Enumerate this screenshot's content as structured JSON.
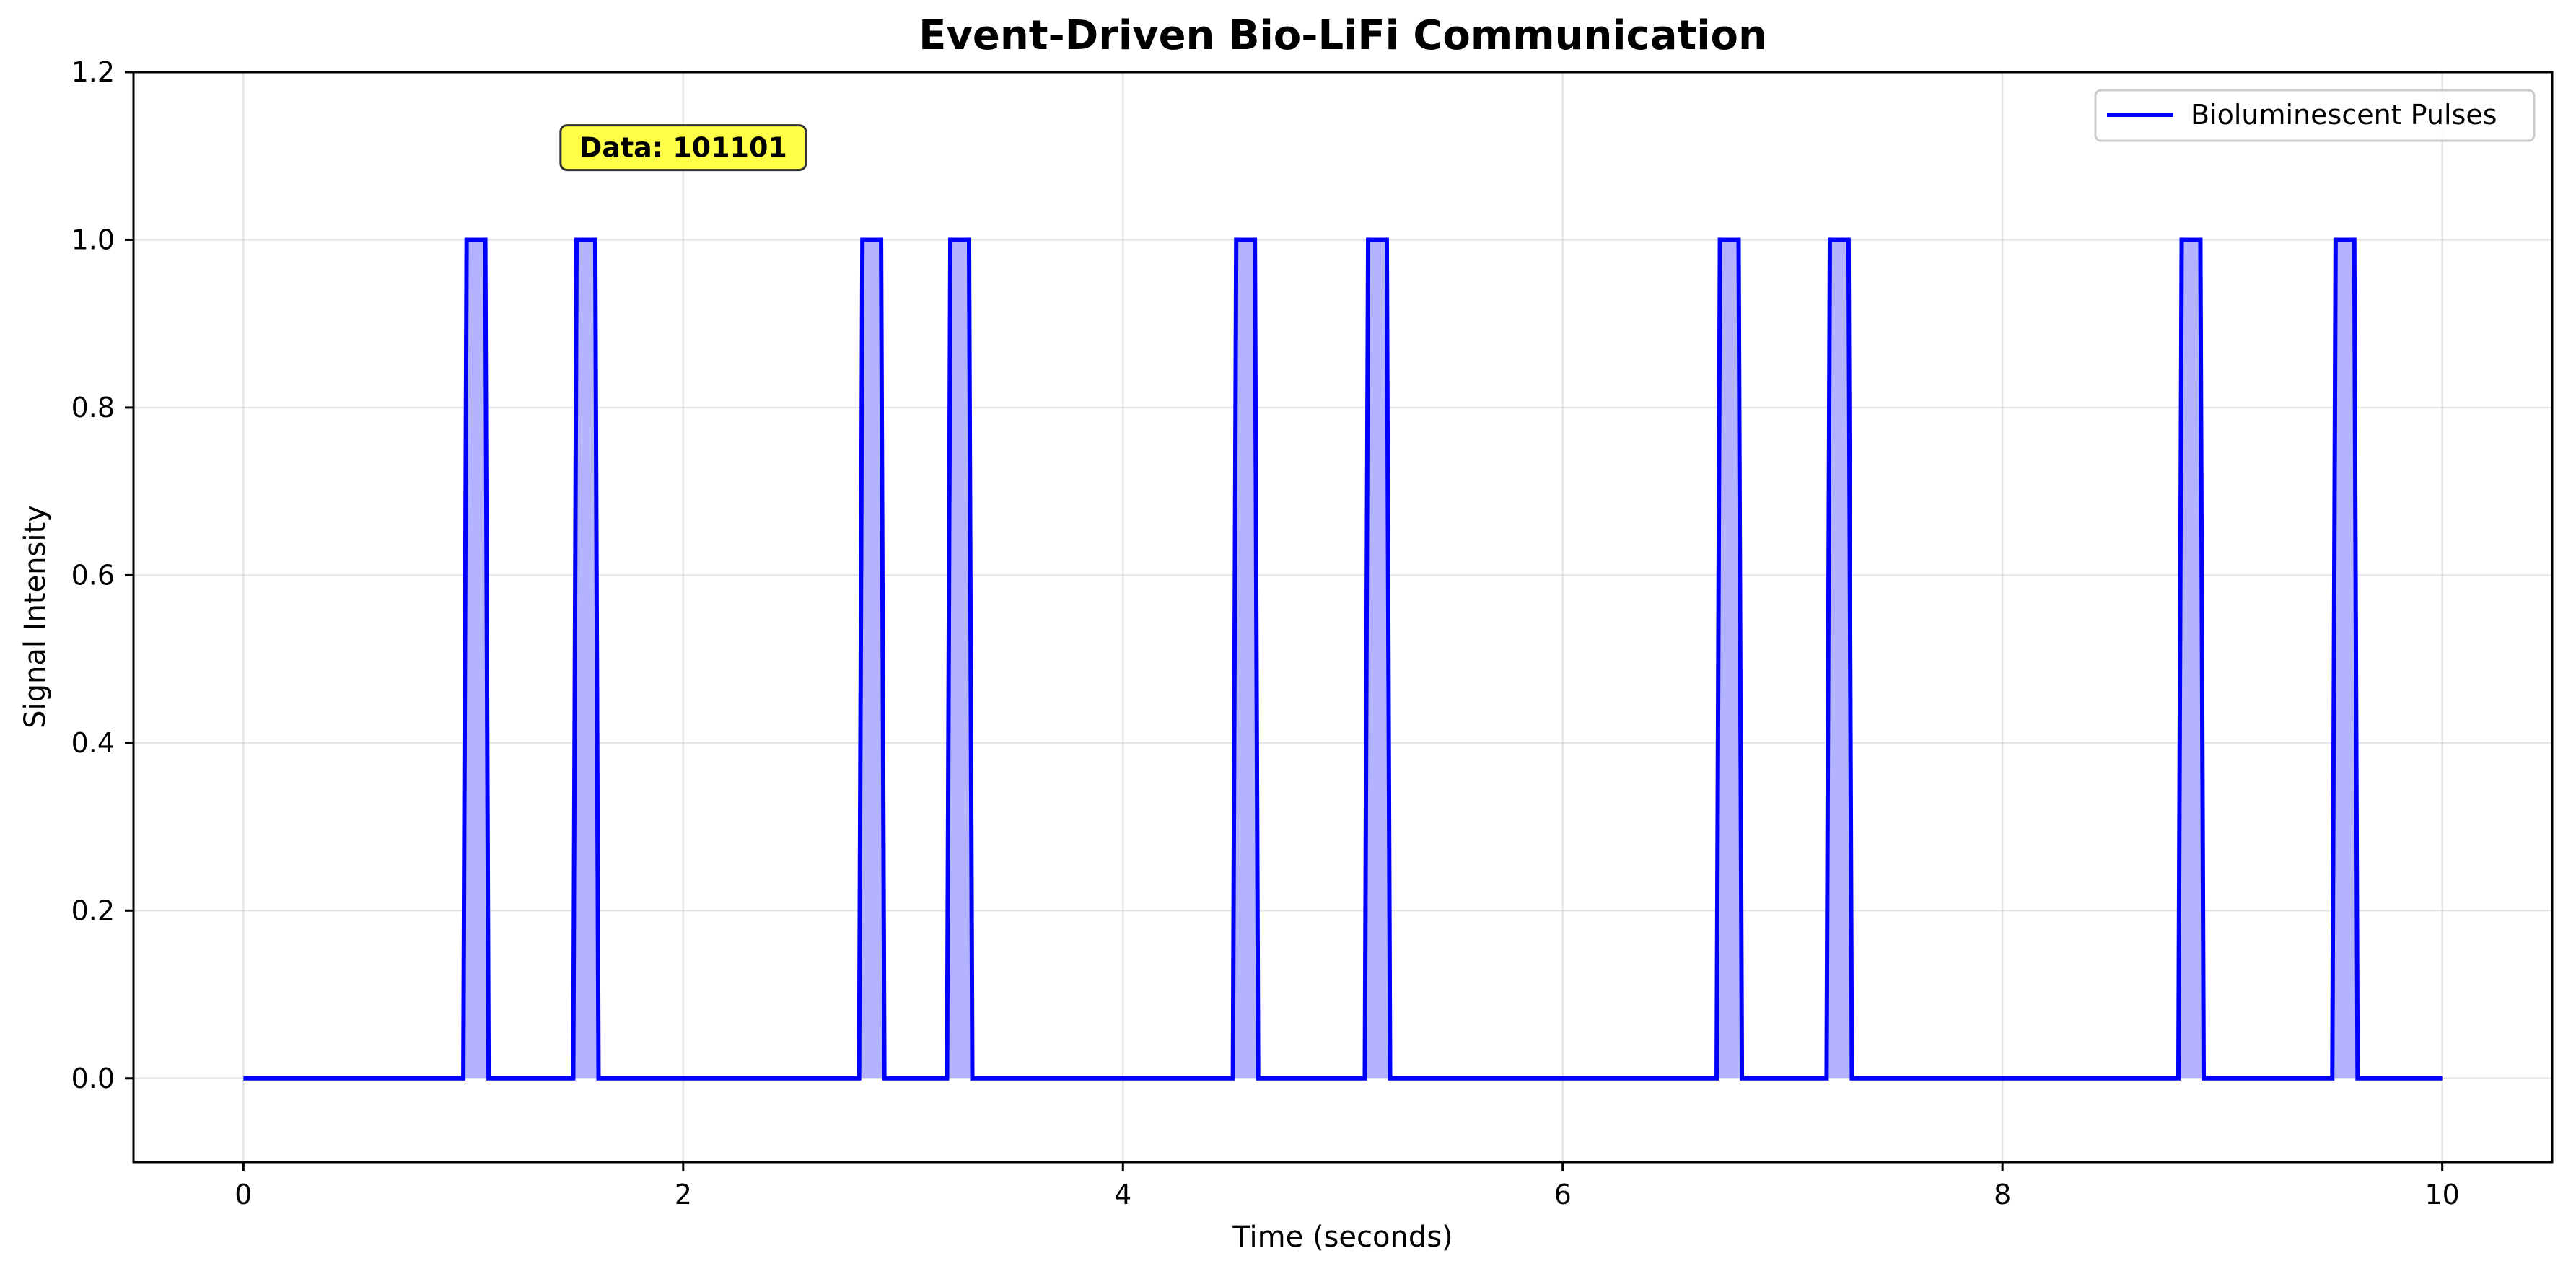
{
  "chart_data": {
    "type": "line",
    "title": "Event-Driven Bio-LiFi Communication",
    "xlabel": "Time (seconds)",
    "ylabel": "Signal Intensity",
    "xlim": [
      -0.5,
      10.5
    ],
    "ylim": [
      -0.1,
      1.2
    ],
    "xticks": [
      0,
      2,
      4,
      6,
      8,
      10
    ],
    "xtick_labels": [
      "0",
      "2",
      "4",
      "6",
      "8",
      "10"
    ],
    "yticks": [
      0.0,
      0.2,
      0.4,
      0.6,
      0.8,
      1.0,
      1.2
    ],
    "ytick_labels": [
      "0.0",
      "0.2",
      "0.4",
      "0.6",
      "0.8",
      "1.0",
      "1.2"
    ],
    "grid": true,
    "legend": {
      "position": "top-right",
      "entries": [
        "Bioluminescent Pulses"
      ]
    },
    "annotation": {
      "text": "Data: 101101",
      "x": 2.0,
      "y": 1.11
    },
    "series": [
      {
        "name": "Bioluminescent Pulses",
        "color": "#0000ff",
        "fill_color": "#b3b3ff",
        "x_range": [
          0,
          10
        ],
        "pulses": [
          {
            "start": 1.0,
            "end": 1.1,
            "value": 1.0
          },
          {
            "start": 1.5,
            "end": 1.6,
            "value": 1.0
          },
          {
            "start": 2.8,
            "end": 2.9,
            "value": 1.0
          },
          {
            "start": 3.2,
            "end": 3.3,
            "value": 1.0
          },
          {
            "start": 4.5,
            "end": 4.6,
            "value": 1.0
          },
          {
            "start": 5.1,
            "end": 5.2,
            "value": 1.0
          },
          {
            "start": 6.7,
            "end": 6.8,
            "value": 1.0
          },
          {
            "start": 7.2,
            "end": 7.3,
            "value": 1.0
          },
          {
            "start": 8.8,
            "end": 8.9,
            "value": 1.0
          },
          {
            "start": 9.5,
            "end": 9.6,
            "value": 1.0
          }
        ]
      }
    ]
  }
}
